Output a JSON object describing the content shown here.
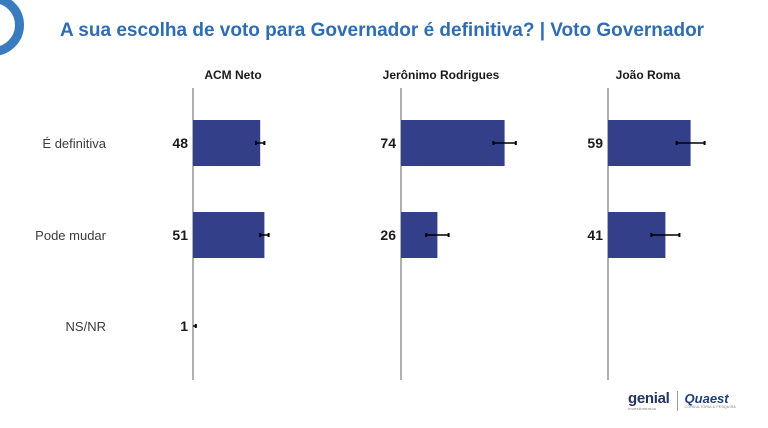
{
  "title": "A sua escolha de voto para Governador é definitiva? | Voto Governador",
  "colors": {
    "bar": "#333f88",
    "title": "#2e6db4",
    "axis": "#b0b0b0",
    "error": "#000000"
  },
  "logos": {
    "genial": "genial",
    "genial_sub": "investimentos",
    "quaest": "Quaest",
    "quaest_sub": "CONSULTORIA & PESQUISA"
  },
  "chart_data": {
    "type": "bar",
    "orientation": "horizontal",
    "categories": [
      "É definitiva",
      "Pode mudar",
      "NS/NR"
    ],
    "panels": [
      {
        "name": "ACM Neto",
        "values": [
          48,
          51,
          1
        ],
        "err": [
          3,
          3,
          1
        ]
      },
      {
        "name": "Jerônimo Rodrigues",
        "values": [
          74,
          26,
          null
        ],
        "err": [
          8,
          8,
          null
        ]
      },
      {
        "name": "João Roma",
        "values": [
          59,
          41,
          null
        ],
        "err": [
          10,
          10,
          null
        ]
      }
    ],
    "xlim": [
      0,
      100
    ],
    "error_bars": true,
    "data_labels": true
  }
}
